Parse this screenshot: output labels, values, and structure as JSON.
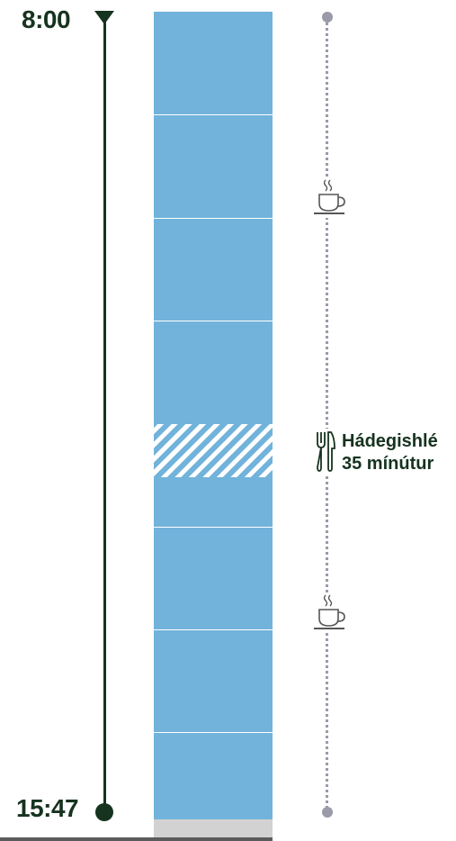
{
  "timeline": {
    "start_time": "8:00",
    "end_time": "15:47",
    "line_color": "#16331f"
  },
  "bar": {
    "work_color": "#71b3da",
    "remainder_color": "#d2d2d2",
    "segments": [
      {
        "kind": "work"
      },
      {
        "kind": "work"
      },
      {
        "kind": "work"
      },
      {
        "kind": "work"
      },
      {
        "kind": "lunch-break"
      },
      {
        "kind": "work"
      },
      {
        "kind": "work"
      },
      {
        "kind": "work"
      },
      {
        "kind": "work"
      },
      {
        "kind": "remainder"
      }
    ]
  },
  "breaks": {
    "track_color": "#9a9aa8",
    "coffee_icon": "coffee-cup-icon",
    "lunch_icon": "fork-knife-icon",
    "lunch_label_line1": "Hádegishlé",
    "lunch_label_line2": "35 mínútur"
  }
}
